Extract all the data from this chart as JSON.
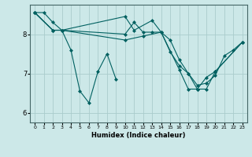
{
  "xlabel": "Humidex (Indice chaleur)",
  "bg_color": "#cce8e8",
  "grid_color": "#aacccc",
  "line_color": "#006060",
  "xlim": [
    -0.5,
    23.5
  ],
  "ylim": [
    5.75,
    8.75
  ],
  "yticks": [
    6,
    7,
    8
  ],
  "xticks": [
    0,
    1,
    2,
    3,
    4,
    5,
    6,
    7,
    8,
    9,
    10,
    11,
    12,
    13,
    14,
    15,
    16,
    17,
    18,
    19,
    20,
    21,
    22,
    23
  ],
  "series": [
    {
      "x": [
        0,
        1,
        2,
        3,
        4,
        5,
        6,
        7,
        8,
        9
      ],
      "y": [
        8.55,
        8.55,
        8.3,
        8.1,
        7.6,
        6.55,
        6.25,
        7.05,
        7.5,
        6.85
      ]
    },
    {
      "x": [
        0,
        2,
        3,
        10,
        11,
        12,
        13,
        14,
        15,
        16,
        17,
        18,
        19,
        20,
        21,
        22,
        23
      ],
      "y": [
        8.55,
        8.1,
        8.1,
        8.0,
        8.3,
        8.05,
        8.05,
        8.05,
        7.55,
        7.2,
        7.0,
        6.7,
        6.75,
        6.95,
        7.45,
        7.6,
        7.8
      ]
    },
    {
      "x": [
        0,
        2,
        3,
        10,
        11,
        13,
        14,
        15,
        16,
        17,
        18,
        19,
        20,
        23
      ],
      "y": [
        8.55,
        8.1,
        8.1,
        8.45,
        8.1,
        8.35,
        8.05,
        7.85,
        7.35,
        7.0,
        6.6,
        6.6,
        7.05,
        7.8
      ]
    },
    {
      "x": [
        0,
        2,
        3,
        10,
        12,
        14,
        16,
        17,
        18,
        19,
        20,
        23
      ],
      "y": [
        8.55,
        8.1,
        8.1,
        7.85,
        7.95,
        8.05,
        7.1,
        6.6,
        6.6,
        6.9,
        7.05,
        7.8
      ]
    }
  ]
}
